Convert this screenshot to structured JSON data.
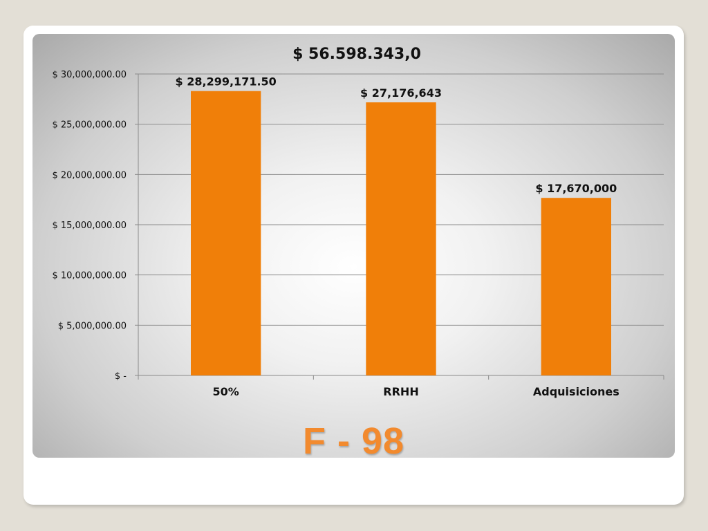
{
  "slide_title": "F - 98",
  "chart_data": {
    "type": "bar",
    "title": "$ 56.598.343,0",
    "categories": [
      "50%",
      "RRHH",
      "Adquisiciones"
    ],
    "values": [
      28299171.5,
      27176643,
      17670000
    ],
    "data_labels": [
      "$ 28,299,171.50",
      "$ 27,176,643",
      "$ 17,670,000"
    ],
    "ylim": [
      0,
      30000000
    ],
    "yticks": [
      0,
      5000000,
      10000000,
      15000000,
      20000000,
      25000000,
      30000000
    ],
    "ytick_labels": [
      "$ -",
      "$ 5,000,000.00",
      "$ 10,000,000.00",
      "$ 15,000,000.00",
      "$ 20,000,000.00",
      "$ 25,000,000.00",
      "$ 30,000,000.00"
    ],
    "grid": true,
    "legend": "none",
    "bar_color": "#f07f09"
  }
}
